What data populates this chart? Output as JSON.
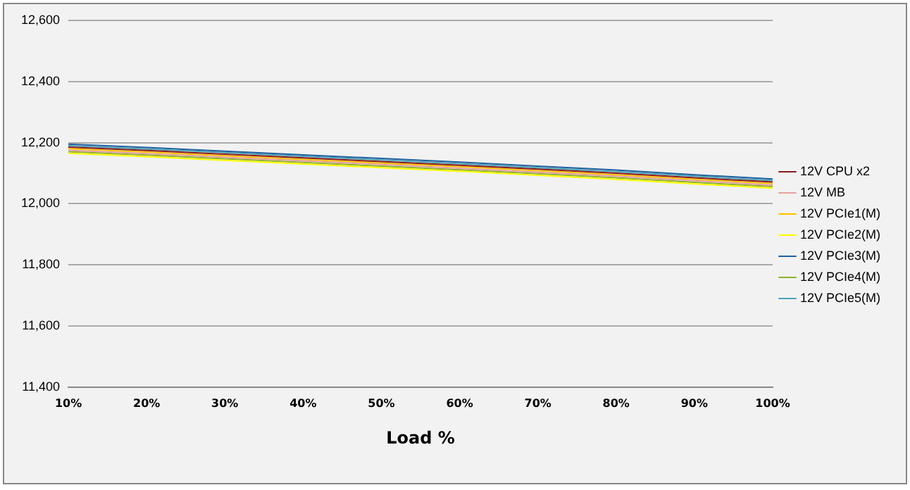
{
  "chart_data": {
    "type": "line",
    "xlabel": "Load %",
    "categories": [
      "10%",
      "20%",
      "30%",
      "40%",
      "50%",
      "60%",
      "70%",
      "80%",
      "90%",
      "100%"
    ],
    "ylim": [
      11400,
      12600
    ],
    "yticks": [
      {
        "value": 11400,
        "label": "11,400"
      },
      {
        "value": 11600,
        "label": "11,600"
      },
      {
        "value": 11800,
        "label": "11,800"
      },
      {
        "value": 12000,
        "label": "12,000"
      },
      {
        "value": 12200,
        "label": "12,200"
      },
      {
        "value": 12400,
        "label": "12,400"
      },
      {
        "value": 12600,
        "label": "12,600"
      }
    ],
    "grid": "y",
    "legend": "right",
    "marker": "none",
    "line_style": "solid",
    "series": [
      {
        "name": "12V CPU x2",
        "color": "#8b1a1a",
        "values": [
          12185,
          12174,
          12162,
          12150,
          12138,
          12126,
          12113,
          12100,
          12085,
          12071
        ]
      },
      {
        "name": "12V MB",
        "color": "#e6a0a0",
        "values": [
          12175,
          12164,
          12152,
          12140,
          12128,
          12116,
          12103,
          12090,
          12075,
          12061
        ]
      },
      {
        "name": "12V PCIe1(M)",
        "color": "#ffc000",
        "values": [
          12180,
          12169,
          12157,
          12145,
          12133,
          12121,
          12108,
          12095,
          12080,
          12066
        ]
      },
      {
        "name": "12V PCIe2(M)",
        "color": "#ffff00",
        "values": [
          12165,
          12154,
          12142,
          12130,
          12118,
          12106,
          12093,
          12080,
          12065,
          12051
        ]
      },
      {
        "name": "12V PCIe3(M)",
        "color": "#1f5f9f",
        "values": [
          12195,
          12184,
          12172,
          12160,
          12148,
          12136,
          12123,
          12110,
          12095,
          12081
        ]
      },
      {
        "name": "12V PCIe4(M)",
        "color": "#8db32b",
        "values": [
          12170,
          12159,
          12147,
          12135,
          12123,
          12111,
          12098,
          12085,
          12070,
          12056
        ]
      },
      {
        "name": "12V PCIe5(M)",
        "color": "#4ba3b8",
        "values": [
          12190,
          12179,
          12167,
          12155,
          12143,
          12131,
          12118,
          12105,
          12090,
          12076
        ]
      }
    ]
  }
}
